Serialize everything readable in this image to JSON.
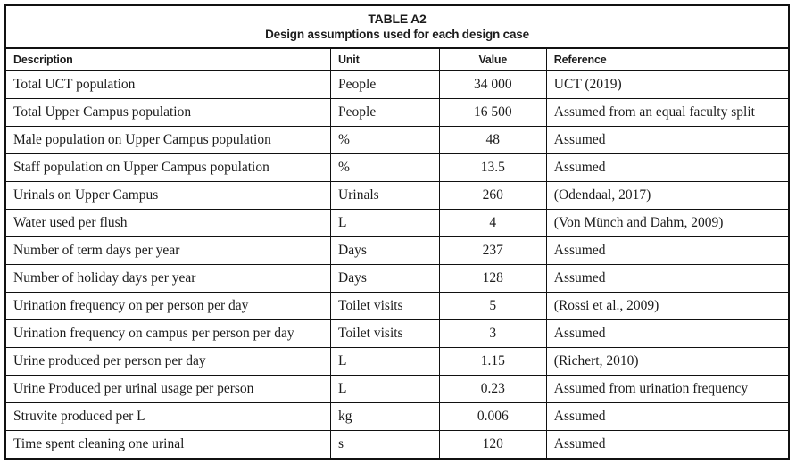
{
  "table": {
    "title_line1": "TABLE A2",
    "title_line2": "Design assumptions used for each design case",
    "columns": [
      "Description",
      "Unit",
      "Value",
      "Reference"
    ],
    "rows": [
      [
        "Total UCT population",
        "People",
        "34 000",
        "UCT (2019)"
      ],
      [
        "Total Upper Campus population",
        "People",
        "16 500",
        "Assumed from an equal faculty split"
      ],
      [
        "Male population on Upper Campus population",
        "%",
        "48",
        "Assumed"
      ],
      [
        "Staff population on Upper Campus population",
        "%",
        "13.5",
        "Assumed"
      ],
      [
        "Urinals on Upper Campus",
        "Urinals",
        "260",
        "(Odendaal, 2017)"
      ],
      [
        "Water used per flush",
        "L",
        "4",
        "(Von Münch and Dahm, 2009)"
      ],
      [
        "Number of term days per year",
        "Days",
        "237",
        "Assumed"
      ],
      [
        "Number of holiday days per year",
        "Days",
        "128",
        "Assumed"
      ],
      [
        "Urination frequency on per person per day",
        "Toilet visits",
        "5",
        "(Rossi et al., 2009)"
      ],
      [
        "Urination frequency on campus per person per day",
        "Toilet visits",
        "3",
        "Assumed"
      ],
      [
        "Urine produced per person per day",
        "L",
        "1.15",
        "(Richert, 2010)"
      ],
      [
        "Urine Produced per urinal usage per person",
        "L",
        "0.23",
        "Assumed from urination frequency"
      ],
      [
        "Struvite produced per L",
        "kg",
        "0.006",
        "Assumed"
      ],
      [
        "Time spent cleaning one urinal",
        "s",
        "120",
        "Assumed"
      ]
    ]
  }
}
